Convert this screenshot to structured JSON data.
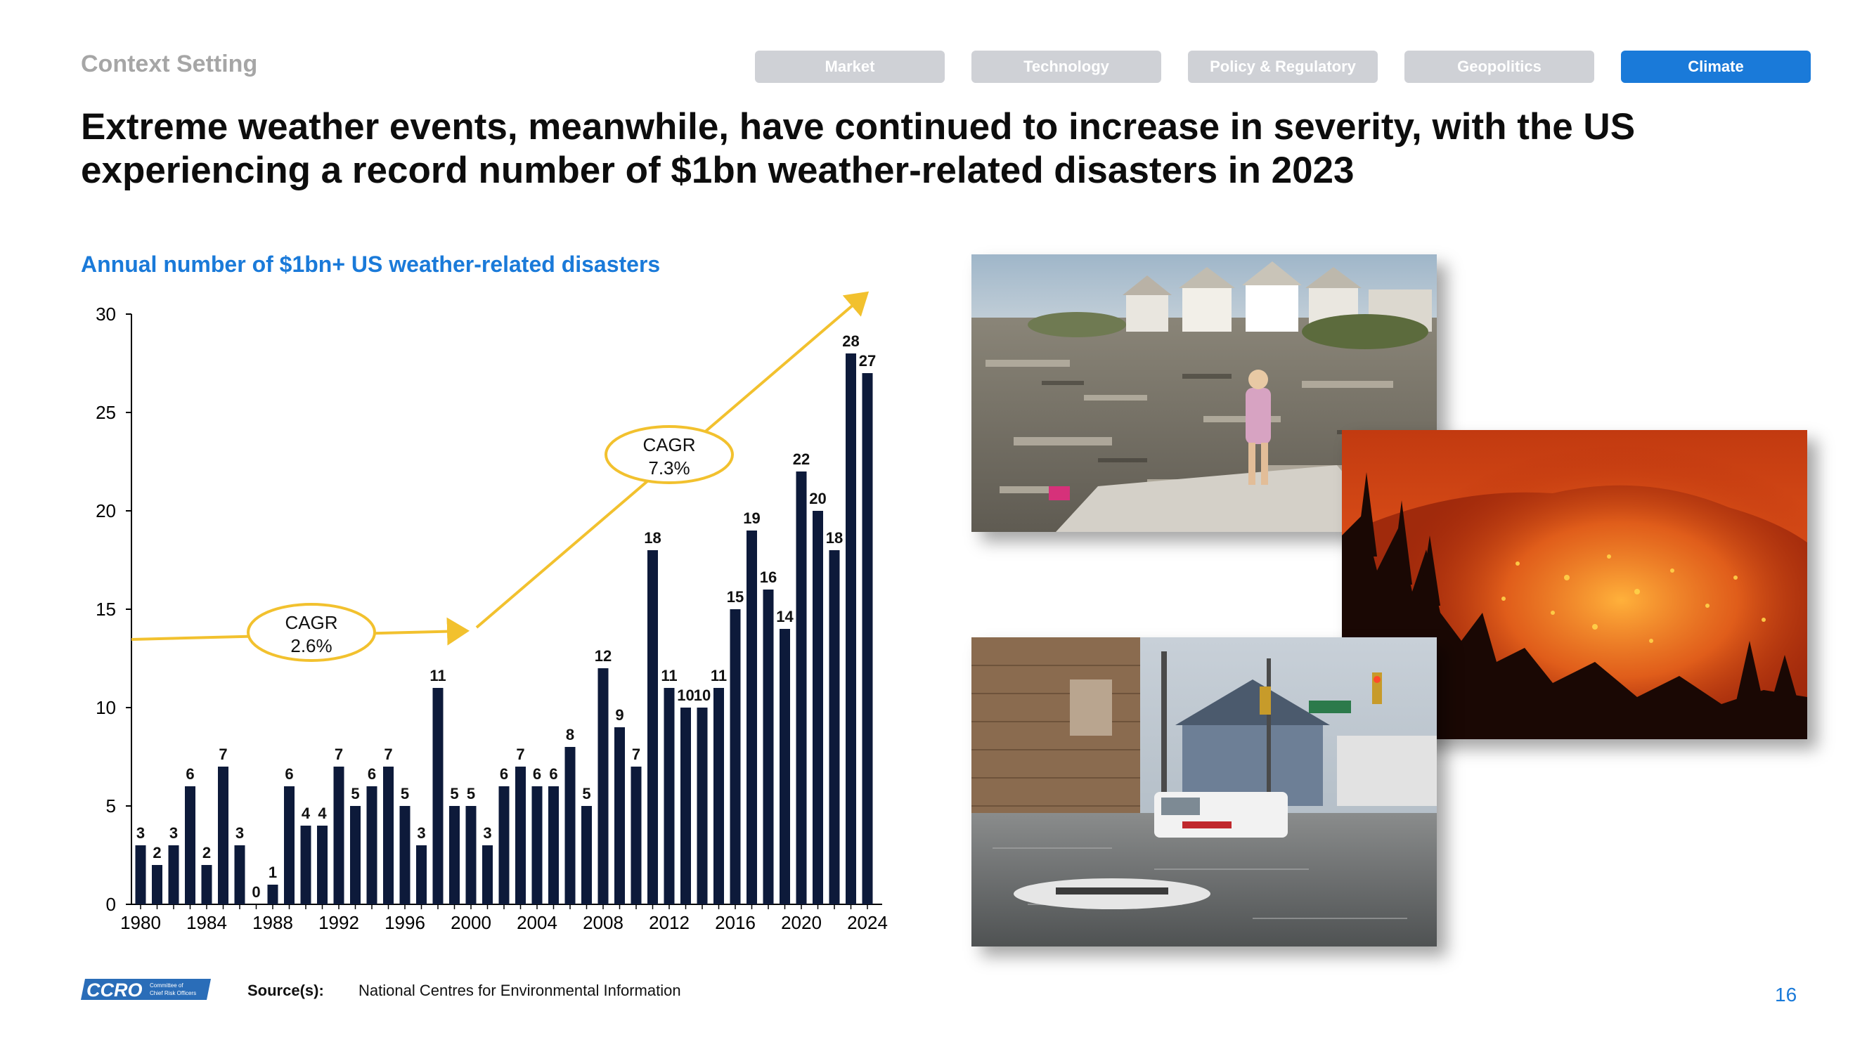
{
  "header": {
    "section_label": "Context Setting",
    "tabs": [
      "Market",
      "Technology",
      "Policy & Regulatory",
      "Geopolitics",
      "Climate"
    ],
    "active_tab": "Climate",
    "headline": "Extreme weather events, meanwhile, have continued to increase in severity, with the US experiencing a record number of $1bn weather-related disasters in 2023"
  },
  "colors": {
    "accent": "#1a7ad9",
    "bar": "#0d1a3a",
    "arrow": "#f2c12e",
    "tab_inactive": "#cfd1d6"
  },
  "chart_data": {
    "type": "bar",
    "title": "Annual number of $1bn+ US weather-related disasters",
    "xlabel": "",
    "ylabel": "",
    "ylim": [
      0,
      30
    ],
    "yticks": [
      0,
      5,
      10,
      15,
      20,
      25,
      30
    ],
    "xtick_labels": [
      "1980",
      "1984",
      "1988",
      "1992",
      "1996",
      "2000",
      "2004",
      "2008",
      "2012",
      "2016",
      "2020",
      "2024"
    ],
    "categories": [
      1980,
      1981,
      1982,
      1983,
      1984,
      1985,
      1986,
      1987,
      1988,
      1989,
      1990,
      1991,
      1992,
      1993,
      1994,
      1995,
      1996,
      1997,
      1998,
      1999,
      2000,
      2001,
      2002,
      2003,
      2004,
      2005,
      2006,
      2007,
      2008,
      2009,
      2010,
      2011,
      2012,
      2013,
      2014,
      2015,
      2016,
      2017,
      2018,
      2019,
      2020,
      2021,
      2022,
      2023,
      2024
    ],
    "values": [
      3,
      2,
      3,
      6,
      2,
      7,
      3,
      0,
      1,
      6,
      4,
      4,
      7,
      5,
      6,
      7,
      5,
      3,
      11,
      5,
      5,
      3,
      6,
      7,
      6,
      6,
      8,
      5,
      12,
      9,
      7,
      18,
      11,
      10,
      10,
      11,
      15,
      19,
      16,
      14,
      22,
      20,
      18,
      28,
      27
    ],
    "annotations": [
      {
        "label": "CAGR",
        "value": "2.6%"
      },
      {
        "label": "CAGR",
        "value": "7.3%"
      }
    ]
  },
  "photos": [
    {
      "icon": "hurricane-aftermath-photo"
    },
    {
      "icon": "wildfire-photo"
    },
    {
      "icon": "flood-photo"
    }
  ],
  "footer": {
    "logo_text": "CCRO",
    "logo_subtext": "Committee of Chief Risk Officers",
    "source_label": "Source(s):",
    "source_text": "National Centres for Environmental Information",
    "page_number": "16"
  }
}
